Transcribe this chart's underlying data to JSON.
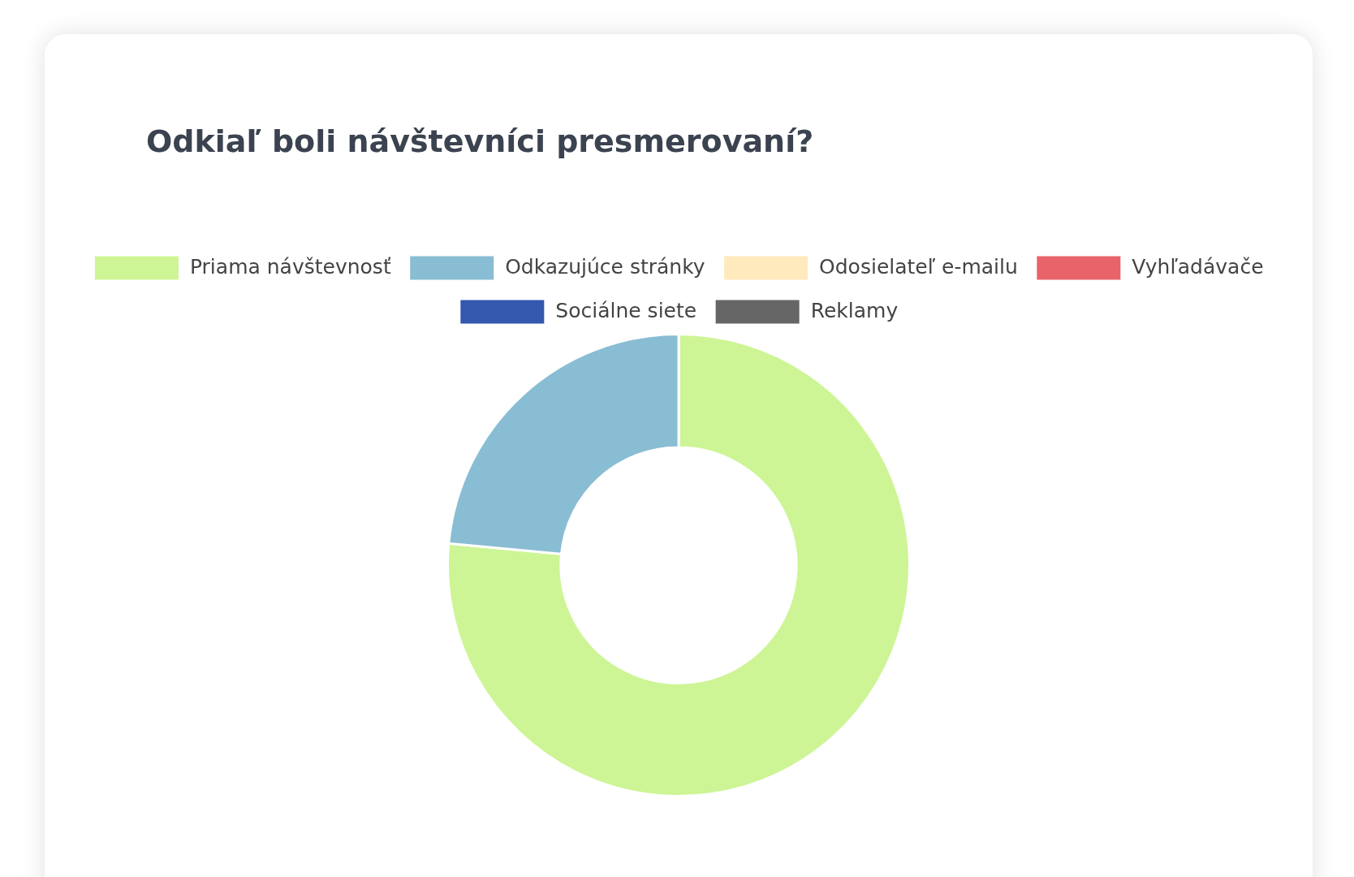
{
  "chart_data": {
    "type": "donut",
    "title": "Odkiaľ boli návštevníci presmerovaní?",
    "categories": [
      "Priama návštevnosť",
      "Odkazujúce stránky",
      "Odosielateľ e-mailu",
      "Vyhľadávače",
      "Sociálne siete",
      "Reklamy"
    ],
    "values": [
      76.5,
      23.5,
      0,
      0,
      0,
      0
    ],
    "colors": [
      "#cdf595",
      "#89bdd3",
      "#ffeabd",
      "#e8636a",
      "#3358ae",
      "#666666"
    ],
    "legend": "top"
  }
}
